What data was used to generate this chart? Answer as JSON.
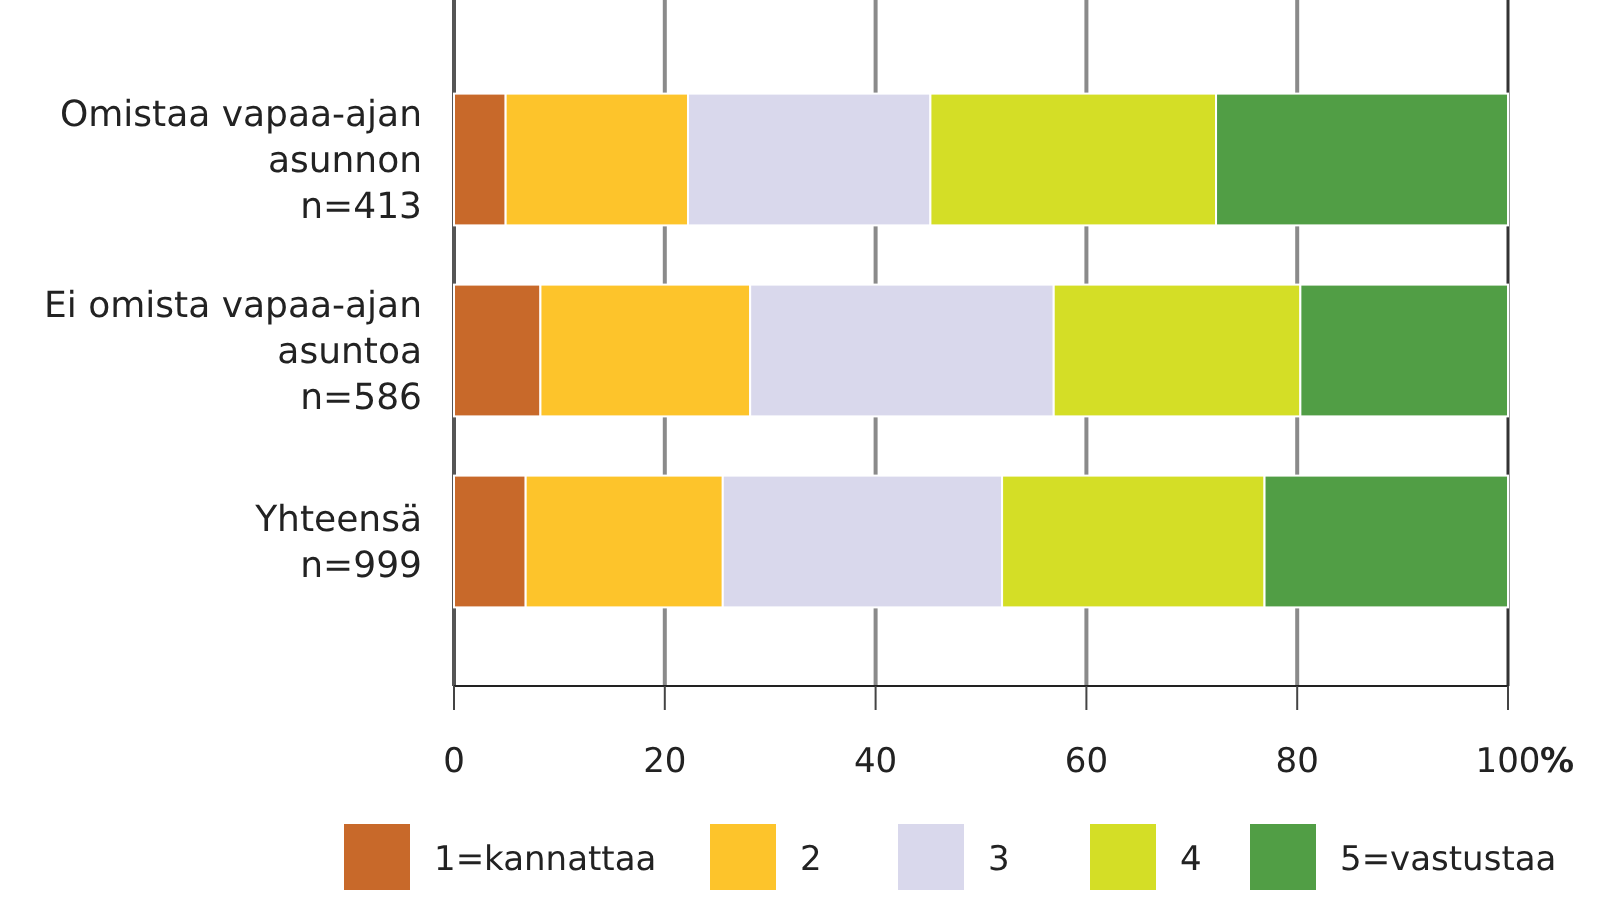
{
  "chart_data": {
    "type": "bar",
    "orientation": "horizontal",
    "stacked": true,
    "categories": [
      "Omistaa vapaa-ajan\nasunnon\nn=413",
      "Ei omista vapaa-ajan\nasuntoa\nn=586",
      "Yhteensä\nn=999"
    ],
    "series": [
      {
        "name": "1=kannattaa",
        "color": "#c8692a",
        "values": [
          4.9,
          8.2,
          6.8
        ]
      },
      {
        "name": "2",
        "color": "#fdc42b",
        "values": [
          17.3,
          19.9,
          18.7
        ]
      },
      {
        "name": "3",
        "color": "#d9d8ec",
        "values": [
          23.0,
          28.8,
          26.5
        ]
      },
      {
        "name": "4",
        "color": "#d4de26",
        "values": [
          27.1,
          23.4,
          24.9
        ]
      },
      {
        "name": "5=vastustaa",
        "color": "#519e45",
        "values": [
          27.7,
          19.7,
          23.1
        ]
      }
    ],
    "xlabel": "%",
    "xlim": [
      0,
      100
    ],
    "xticks": [
      0,
      20,
      40,
      60,
      80,
      100
    ],
    "grid": "x",
    "legend": "bottom"
  }
}
